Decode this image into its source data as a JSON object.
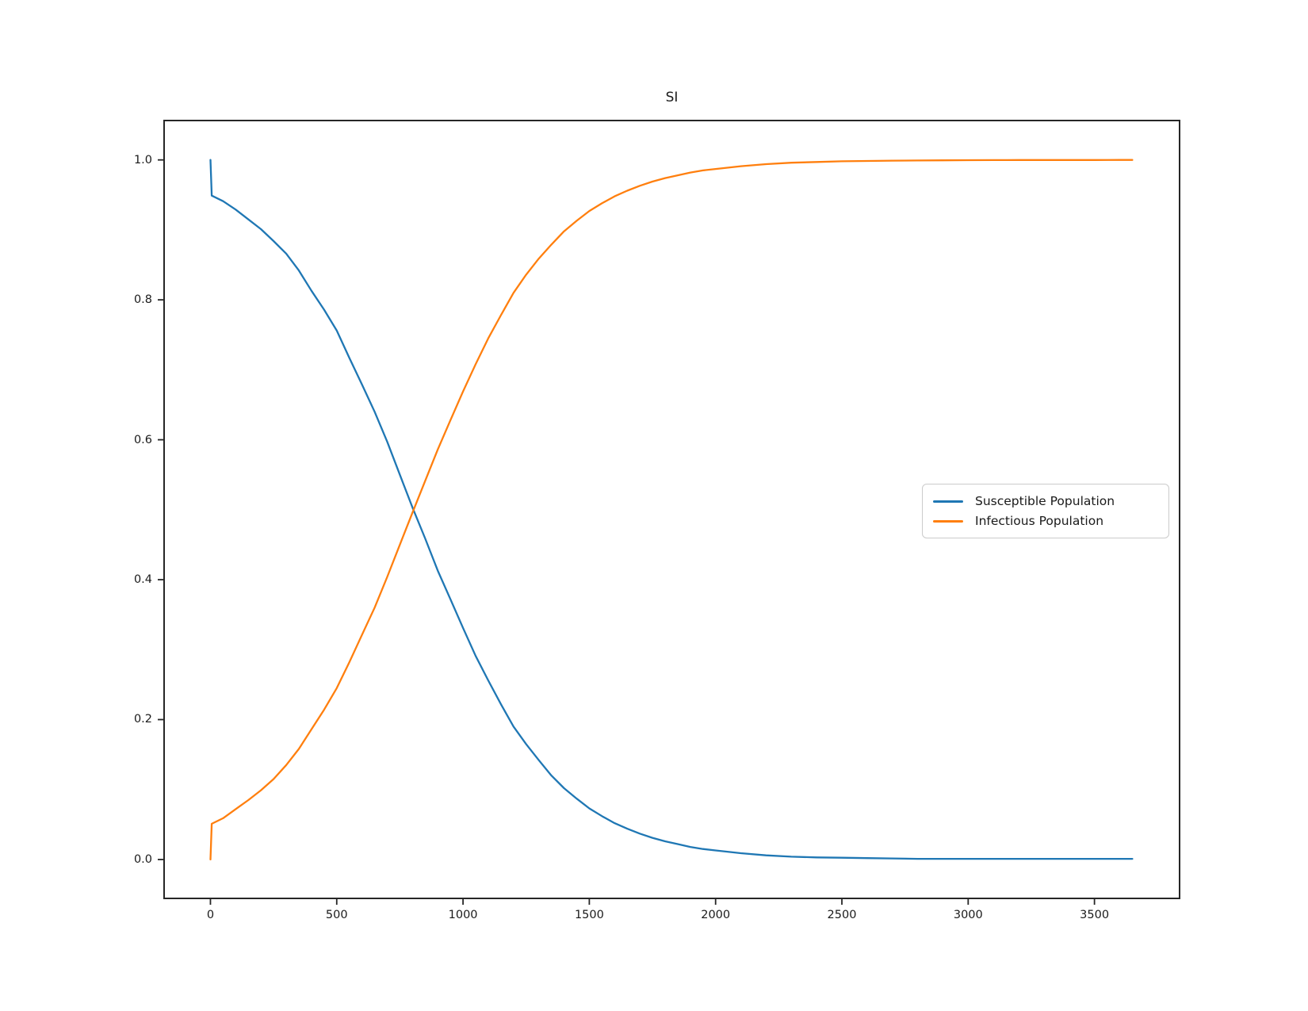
{
  "figure": {
    "background": "#ffffff",
    "text_color": "#1a1a1a",
    "spine_color": "#262626"
  },
  "chart_data": {
    "type": "line",
    "title": "SI",
    "xlabel": "",
    "ylabel": "",
    "grid": false,
    "legend_position": "center-right",
    "xticks": [
      0,
      500,
      1000,
      1500,
      2000,
      2500,
      3000,
      3500
    ],
    "xtick_labels": [
      "0",
      "500",
      "1000",
      "1500",
      "2000",
      "2500",
      "3000",
      "3500"
    ],
    "yticks": [
      0.0,
      0.2,
      0.4,
      0.6,
      0.8,
      1.0
    ],
    "ytick_labels": [
      "0.0",
      "0.2",
      "0.4",
      "0.6",
      "0.8",
      "1.0"
    ],
    "xlim": [
      -183.5,
      3837
    ],
    "ylim": [
      -0.0556,
      1.0563
    ],
    "x": [
      0,
      5,
      50,
      100,
      150,
      200,
      250,
      300,
      350,
      400,
      450,
      500,
      550,
      600,
      650,
      700,
      750,
      800,
      850,
      900,
      950,
      1000,
      1050,
      1100,
      1150,
      1200,
      1250,
      1300,
      1350,
      1400,
      1450,
      1500,
      1550,
      1600,
      1650,
      1700,
      1750,
      1800,
      1850,
      1900,
      1950,
      2000,
      2100,
      2200,
      2300,
      2400,
      2500,
      2600,
      2700,
      2800,
      2900,
      3000,
      3100,
      3200,
      3300,
      3400,
      3500,
      3600,
      3650
    ],
    "series": [
      {
        "name": "Susceptible Population",
        "color": "#1f77b4",
        "values": [
          1.0,
          0.949,
          0.941,
          0.929,
          0.915,
          0.901,
          0.884,
          0.866,
          0.842,
          0.813,
          0.786,
          0.756,
          0.717,
          0.679,
          0.64,
          0.597,
          0.55,
          0.503,
          0.459,
          0.413,
          0.372,
          0.331,
          0.291,
          0.256,
          0.222,
          0.19,
          0.165,
          0.142,
          0.12,
          0.102,
          0.087,
          0.073,
          0.062,
          0.052,
          0.044,
          0.037,
          0.031,
          0.026,
          0.022,
          0.018,
          0.015,
          0.013,
          0.009,
          0.006,
          0.004,
          0.003,
          0.0025,
          0.002,
          0.0015,
          0.001,
          0.001,
          0.001,
          0.001,
          0.001,
          0.001,
          0.001,
          0.001,
          0.001,
          0.001
        ]
      },
      {
        "name": "Infectious Population",
        "color": "#ff7f0e",
        "values": [
          0.0,
          0.051,
          0.059,
          0.072,
          0.085,
          0.099,
          0.115,
          0.135,
          0.158,
          0.186,
          0.214,
          0.245,
          0.282,
          0.321,
          0.36,
          0.404,
          0.45,
          0.496,
          0.541,
          0.586,
          0.628,
          0.669,
          0.708,
          0.745,
          0.778,
          0.81,
          0.836,
          0.859,
          0.879,
          0.898,
          0.913,
          0.927,
          0.938,
          0.948,
          0.956,
          0.963,
          0.969,
          0.974,
          0.978,
          0.982,
          0.985,
          0.987,
          0.991,
          0.994,
          0.996,
          0.997,
          0.998,
          0.9985,
          0.999,
          0.9992,
          0.9994,
          0.9996,
          0.9997,
          0.9998,
          0.9998,
          0.9999,
          0.9999,
          1.0,
          1.0
        ]
      }
    ]
  }
}
